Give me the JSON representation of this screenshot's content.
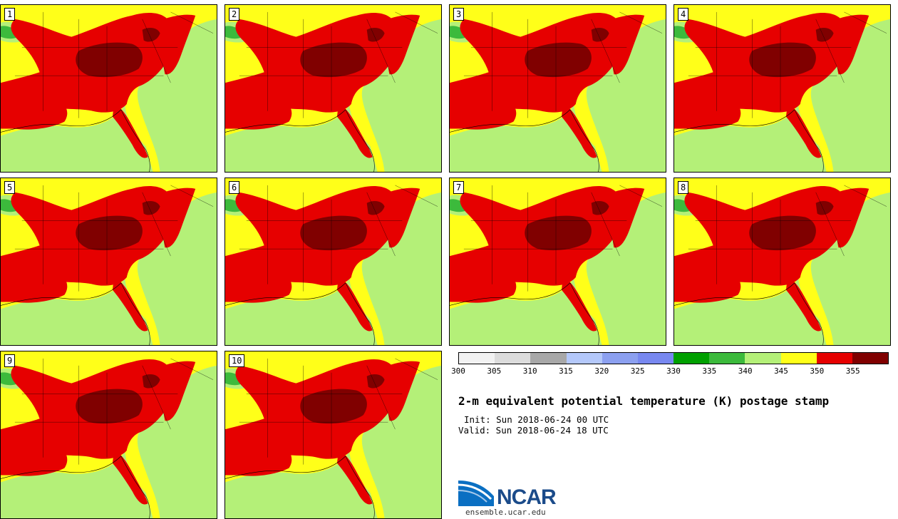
{
  "panels": [
    {
      "label": "1"
    },
    {
      "label": "2"
    },
    {
      "label": "3"
    },
    {
      "label": "4"
    },
    {
      "label": "5"
    },
    {
      "label": "6"
    },
    {
      "label": "7"
    },
    {
      "label": "8"
    },
    {
      "label": "9"
    },
    {
      "label": "10"
    }
  ],
  "colorbar": {
    "ticks": [
      "300",
      "305",
      "310",
      "315",
      "320",
      "325",
      "330",
      "335",
      "340",
      "345",
      "350",
      "355"
    ],
    "colors": [
      "#f2f2f2",
      "#dcdcdc",
      "#a8a8a8",
      "#b4c8fa",
      "#8ca0f0",
      "#7888f0",
      "#00a000",
      "#3cba3c",
      "#b4f078",
      "#ffff19",
      "#e60000",
      "#800000"
    ]
  },
  "text": {
    "title": "2-m equivalent potential temperature (K) postage stamp",
    "init": "Init: Sun 2018-06-24 00 UTC",
    "valid": "Valid: Sun 2018-06-24 18 UTC",
    "logo": "NCAR",
    "url": "ensemble.ucar.edu"
  },
  "map_colors": {
    "land_base": "#ffff19",
    "ocean": "#b4f078",
    "hot": "#e60000",
    "hottest": "#800000",
    "green": "#3cba3c"
  }
}
